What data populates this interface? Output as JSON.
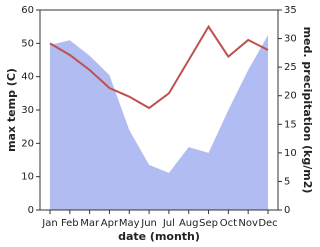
{
  "chart_data": {
    "type": "line-area",
    "categories": [
      "Jan",
      "Feb",
      "Mar",
      "Apr",
      "May",
      "Jun",
      "Jul",
      "Aug",
      "Sep",
      "Oct",
      "Nov",
      "Dec"
    ],
    "x_label": "date (month)",
    "y_label": "max temp (C)",
    "y2_label": "med. precipitation (kg/m2)",
    "ylim": [
      0,
      60
    ],
    "yticks": [
      0,
      10,
      20,
      30,
      40,
      50,
      60
    ],
    "y2lim": [
      0,
      35
    ],
    "y2ticks": [
      0,
      5,
      10,
      15,
      20,
      25,
      30,
      35
    ],
    "series": [
      {
        "name": "med. precipitation",
        "kind": "area",
        "axis": "y2",
        "color": "#b1bdf2",
        "values": [
          28.9,
          29.7,
          27,
          23.6,
          14,
          7.9,
          6.5,
          11,
          10,
          17.5,
          24.5,
          30.6
        ]
      },
      {
        "name": "max temp",
        "kind": "line",
        "axis": "y",
        "color": "#c0504d",
        "values": [
          50,
          46.5,
          42,
          36.6,
          34,
          30.6,
          35,
          45,
          55,
          46,
          51,
          48
        ]
      }
    ]
  }
}
